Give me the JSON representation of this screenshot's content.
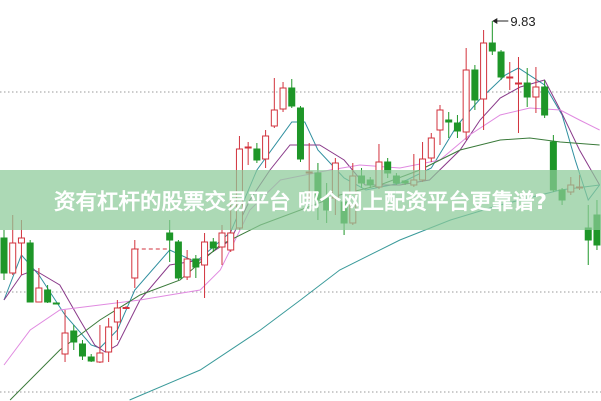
{
  "banner": {
    "title": "资有杠杆的股票交易平台 哪个网上配资平台更靠谱?"
  },
  "chart_data": {
    "type": "candlestick",
    "ylim": [
      2.25,
      10.25
    ],
    "xlim": [
      0,
      68.9
    ],
    "grid": {
      "dotted_levels": [
        8.41,
        4.41,
        2.41
      ]
    },
    "colors": {
      "up": "#d2323c",
      "down": "#1e9628",
      "grid": "#999999"
    },
    "annotations": [
      {
        "label": "9.83",
        "day": 56,
        "price": 9.83
      }
    ],
    "suspension_line": {
      "from_day": 15,
      "to_day": 19,
      "price": 5.27,
      "color": "#d2323c"
    },
    "candles": [
      {
        "d": 0,
        "o": 5.49,
        "c": 4.79,
        "h": 5.65,
        "l": 4.65
      },
      {
        "d": 1,
        "o": 4.79,
        "c": 5.39,
        "h": 5.95,
        "l": 4.75
      },
      {
        "d": 2,
        "o": 5.39,
        "c": 5.49,
        "h": 5.85,
        "l": 4.75
      },
      {
        "d": 3,
        "o": 5.39,
        "c": 4.21,
        "h": 5.45,
        "l": 4.21
      },
      {
        "d": 4,
        "o": 4.21,
        "c": 4.49,
        "h": 4.89,
        "l": 4.21
      },
      {
        "d": 5,
        "o": 4.45,
        "c": 4.21,
        "h": 4.55,
        "l": 4.19
      },
      {
        "d": 6,
        "o": 4.19,
        "c": 4.18,
        "h": 4.19,
        "l": 4.17
      },
      {
        "d": 7,
        "o": 3.17,
        "c": 3.59,
        "h": 4.05,
        "l": 3.01
      },
      {
        "d": 8,
        "o": 3.63,
        "c": 3.41,
        "h": 3.75,
        "l": 3.25
      },
      {
        "d": 9,
        "o": 3.37,
        "c": 3.13,
        "h": 3.45,
        "l": 3.05
      },
      {
        "d": 10,
        "o": 3.11,
        "c": 3.03,
        "h": 3.17,
        "l": 3.01
      },
      {
        "d": 11,
        "o": 3.01,
        "c": 3.19,
        "h": 3.75,
        "l": 2.99
      },
      {
        "d": 12,
        "o": 3.21,
        "c": 3.71,
        "h": 3.89,
        "l": 3.01
      },
      {
        "d": 13,
        "o": 3.81,
        "c": 4.09,
        "h": 4.25,
        "l": 3.45
      },
      {
        "d": 14,
        "o": 4.09,
        "c": 4.1,
        "h": 4.13,
        "l": 4.09
      },
      {
        "d": 15,
        "o": 4.69,
        "c": 5.27,
        "h": 5.45,
        "l": 4.49
      },
      {
        "d": 19,
        "o": 5.59,
        "c": 5.45,
        "h": 5.85,
        "l": 5.01
      },
      {
        "d": 20,
        "o": 5.41,
        "c": 4.69,
        "h": 5.45,
        "l": 4.65
      },
      {
        "d": 21,
        "o": 4.71,
        "c": 5.07,
        "h": 5.25,
        "l": 4.65
      },
      {
        "d": 22,
        "o": 5.07,
        "c": 4.91,
        "h": 5.15,
        "l": 4.69
      },
      {
        "d": 23,
        "o": 4.95,
        "c": 5.41,
        "h": 5.59,
        "l": 4.29
      },
      {
        "d": 24,
        "o": 5.41,
        "c": 5.29,
        "h": 5.49,
        "l": 5.21
      },
      {
        "d": 25,
        "o": 5.31,
        "c": 5.59,
        "h": 5.75,
        "l": 4.95
      },
      {
        "d": 26,
        "o": 5.25,
        "c": 5.59,
        "h": 6.31,
        "l": 5.21
      },
      {
        "d": 27,
        "o": 5.69,
        "c": 7.27,
        "h": 7.53,
        "l": 5.65
      },
      {
        "d": 28,
        "o": 7.29,
        "c": 7.31,
        "h": 7.41,
        "l": 6.95
      },
      {
        "d": 29,
        "o": 7.27,
        "c": 7.05,
        "h": 7.39,
        "l": 6.99
      },
      {
        "d": 30,
        "o": 7.07,
        "c": 7.53,
        "h": 7.65,
        "l": 6.89
      },
      {
        "d": 31,
        "o": 7.73,
        "c": 8.05,
        "h": 8.69,
        "l": 7.69
      },
      {
        "d": 32,
        "o": 8.07,
        "c": 8.49,
        "h": 8.61,
        "l": 8.01
      },
      {
        "d": 33,
        "o": 8.49,
        "c": 8.13,
        "h": 8.67,
        "l": 8.09
      },
      {
        "d": 34,
        "o": 8.09,
        "c": 7.07,
        "h": 8.13,
        "l": 7.01
      },
      {
        "d": 35,
        "o": 6.79,
        "c": 6.81,
        "h": 7.39,
        "l": 6.25
      },
      {
        "d": 36,
        "o": 6.79,
        "c": 6.25,
        "h": 6.99,
        "l": 5.85
      },
      {
        "d": 37,
        "o": 6.29,
        "c": 6.05,
        "h": 6.59,
        "l": 5.79
      },
      {
        "d": 38,
        "o": 6.29,
        "c": 6.99,
        "h": 7.09,
        "l": 5.95
      },
      {
        "d": 39,
        "o": 6.21,
        "c": 5.79,
        "h": 6.29,
        "l": 5.55
      },
      {
        "d": 40,
        "o": 5.79,
        "c": 6.73,
        "h": 6.99,
        "l": 5.75
      },
      {
        "d": 41,
        "o": 6.73,
        "c": 6.59,
        "h": 6.89,
        "l": 6.49
      },
      {
        "d": 42,
        "o": 6.65,
        "c": 6.55,
        "h": 6.71,
        "l": 6.49
      },
      {
        "d": 43,
        "o": 6.51,
        "c": 7.01,
        "h": 7.37,
        "l": 6.47
      },
      {
        "d": 44,
        "o": 7.01,
        "c": 6.79,
        "h": 7.09,
        "l": 6.69
      },
      {
        "d": 45,
        "o": 6.73,
        "c": 6.59,
        "h": 6.79,
        "l": 6.55
      },
      {
        "d": 46,
        "o": 6.63,
        "c": 6.59,
        "h": 6.65,
        "l": 6.55
      },
      {
        "d": 47,
        "o": 6.55,
        "c": 6.65,
        "h": 7.17,
        "l": 6.51
      },
      {
        "d": 48,
        "o": 6.65,
        "c": 7.07,
        "h": 7.41,
        "l": 6.61
      },
      {
        "d": 49,
        "o": 7.09,
        "c": 7.49,
        "h": 7.59,
        "l": 7.01
      },
      {
        "d": 50,
        "o": 7.65,
        "c": 8.05,
        "h": 8.15,
        "l": 7.35
      },
      {
        "d": 51,
        "o": 7.85,
        "c": 7.81,
        "h": 8.01,
        "l": 7.49
      },
      {
        "d": 52,
        "o": 7.79,
        "c": 7.63,
        "h": 7.95,
        "l": 7.49
      },
      {
        "d": 53,
        "o": 7.61,
        "c": 8.85,
        "h": 9.29,
        "l": 7.45
      },
      {
        "d": 54,
        "o": 8.85,
        "c": 8.25,
        "h": 8.95,
        "l": 8.05
      },
      {
        "d": 55,
        "o": 8.27,
        "c": 9.39,
        "h": 9.65,
        "l": 7.65
      },
      {
        "d": 56,
        "o": 9.39,
        "c": 9.23,
        "h": 9.83,
        "l": 9.15
      },
      {
        "d": 57,
        "o": 9.21,
        "c": 8.71,
        "h": 9.25,
        "l": 8.65
      },
      {
        "d": 58,
        "o": 8.69,
        "c": 8.71,
        "h": 9.01,
        "l": 8.45
      },
      {
        "d": 59,
        "o": 8.57,
        "c": 8.59,
        "h": 9.11,
        "l": 7.59
      },
      {
        "d": 60,
        "o": 8.59,
        "c": 8.31,
        "h": 8.89,
        "l": 8.11
      },
      {
        "d": 61,
        "o": 8.31,
        "c": 8.51,
        "h": 8.91,
        "l": 7.99
      },
      {
        "d": 62,
        "o": 8.51,
        "c": 7.95,
        "h": 8.65,
        "l": 7.89
      },
      {
        "d": 63,
        "o": 7.41,
        "c": 6.45,
        "h": 7.55,
        "l": 6.41
      },
      {
        "d": 64,
        "o": 6.45,
        "c": 6.25,
        "h": 6.49,
        "l": 6.15
      },
      {
        "d": 65,
        "o": 6.41,
        "c": 6.55,
        "h": 6.71,
        "l": 6.35
      },
      {
        "d": 66,
        "o": 6.49,
        "c": 6.51,
        "h": 6.75,
        "l": 6.45
      },
      {
        "d": 67,
        "o": 5.69,
        "c": 5.45,
        "h": 6.15,
        "l": 4.95
      },
      {
        "d": 68,
        "o": 5.95,
        "c": 5.35,
        "h": 6.25,
        "l": 5.25
      }
    ],
    "moving_averages": [
      {
        "color": "#2f8f9f",
        "points": [
          [
            0,
            4.25
          ],
          [
            2,
            5.15
          ],
          [
            4,
            4.75
          ],
          [
            7,
            3.95
          ],
          [
            10,
            3.35
          ],
          [
            11,
            3.29
          ],
          [
            13,
            3.65
          ],
          [
            15,
            4.45
          ],
          [
            19,
            5.25
          ],
          [
            22,
            5.01
          ],
          [
            26,
            5.61
          ],
          [
            29,
            6.85
          ],
          [
            33,
            7.81
          ],
          [
            34.5,
            7.81
          ],
          [
            36,
            7.25
          ],
          [
            39,
            6.69
          ],
          [
            41.5,
            6.45
          ],
          [
            45.5,
            6.59
          ],
          [
            49,
            6.89
          ],
          [
            52,
            7.75
          ],
          [
            54.5,
            8.25
          ],
          [
            57.5,
            8.75
          ],
          [
            59,
            8.89
          ],
          [
            62,
            8.55
          ],
          [
            64,
            7.95
          ],
          [
            65.5,
            7.05
          ],
          [
            67,
            6.25
          ],
          [
            68.3,
            6.55
          ]
        ]
      },
      {
        "color": "#8a3a8a",
        "points": [
          [
            0,
            4.25
          ],
          [
            2,
            4.75
          ],
          [
            3.5,
            4.85
          ],
          [
            6.4,
            4.55
          ],
          [
            8.7,
            3.85
          ],
          [
            10.4,
            3.35
          ],
          [
            11.6,
            3.21
          ],
          [
            13,
            3.35
          ],
          [
            15.6,
            4.25
          ],
          [
            19,
            4.95
          ],
          [
            22.5,
            5.05
          ],
          [
            26,
            5.45
          ],
          [
            28.2,
            6.25
          ],
          [
            30.5,
            6.85
          ],
          [
            32.8,
            7.35
          ],
          [
            36.2,
            7.35
          ],
          [
            39,
            7.05
          ],
          [
            41.4,
            6.55
          ],
          [
            45.4,
            6.55
          ],
          [
            48.8,
            6.65
          ],
          [
            52.3,
            7.25
          ],
          [
            54.6,
            7.85
          ],
          [
            56.9,
            8.29
          ],
          [
            59.2,
            8.51
          ],
          [
            62,
            8.65
          ],
          [
            63.8,
            8.05
          ],
          [
            66,
            7.25
          ],
          [
            68.3,
            6.55
          ]
        ]
      },
      {
        "color": "#e08ae0",
        "points": [
          [
            0,
            2.95
          ],
          [
            3,
            3.65
          ],
          [
            6.4,
            4.05
          ],
          [
            11,
            4.15
          ],
          [
            15.6,
            4.25
          ],
          [
            19,
            4.35
          ],
          [
            22.5,
            4.45
          ],
          [
            24.8,
            4.85
          ],
          [
            28.2,
            6.05
          ],
          [
            31.7,
            6.65
          ],
          [
            37.4,
            6.85
          ],
          [
            40.8,
            6.95
          ],
          [
            45.4,
            6.89
          ],
          [
            50,
            7.05
          ],
          [
            53.4,
            7.55
          ],
          [
            56.9,
            7.95
          ],
          [
            60.3,
            8.09
          ],
          [
            63.8,
            8.05
          ],
          [
            66,
            7.85
          ],
          [
            68.3,
            7.65
          ]
        ]
      },
      {
        "color": "#3a7a3a",
        "points": [
          [
            0.7,
            2.25
          ],
          [
            6.4,
            3.25
          ],
          [
            11,
            3.85
          ],
          [
            15.6,
            4.35
          ],
          [
            20.2,
            4.65
          ],
          [
            24.8,
            5.35
          ],
          [
            29.4,
            5.75
          ],
          [
            34,
            6.05
          ],
          [
            38.5,
            6.35
          ],
          [
            43.1,
            6.55
          ],
          [
            47.7,
            6.85
          ],
          [
            52.3,
            7.25
          ],
          [
            56.9,
            7.45
          ],
          [
            60.3,
            7.49
          ],
          [
            63.8,
            7.41
          ],
          [
            68.3,
            7.35
          ]
        ]
      },
      {
        "color": "#3a9a9a",
        "points": [
          [
            14.4,
            2.25
          ],
          [
            22.5,
            2.85
          ],
          [
            29.4,
            3.65
          ],
          [
            34,
            4.25
          ],
          [
            38.5,
            4.85
          ],
          [
            45.4,
            5.45
          ],
          [
            51.2,
            5.85
          ],
          [
            56.9,
            6.15
          ],
          [
            63.8,
            6.45
          ],
          [
            68.3,
            6.55
          ]
        ]
      }
    ]
  }
}
